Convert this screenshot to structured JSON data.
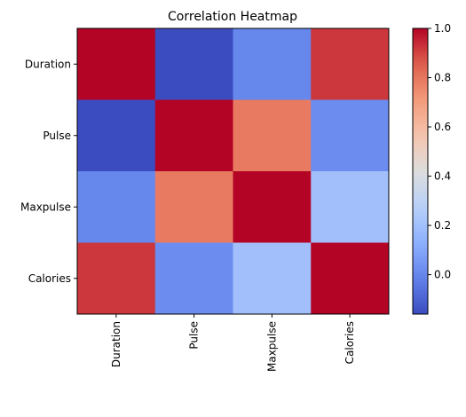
{
  "chart_data": {
    "type": "heatmap",
    "title": "Correlation Heatmap",
    "xlabel": "",
    "ylabel": "",
    "x_categories": [
      "Duration",
      "Pulse",
      "Maxpulse",
      "Calories"
    ],
    "y_categories": [
      "Duration",
      "Pulse",
      "Maxpulse",
      "Calories"
    ],
    "values": [
      [
        1.0,
        -0.16,
        0.0,
        0.92
      ],
      [
        -0.16,
        1.0,
        0.79,
        0.02
      ],
      [
        0.0,
        0.79,
        1.0,
        0.2
      ],
      [
        0.92,
        0.02,
        0.2,
        1.0
      ]
    ],
    "vmin": -0.16,
    "vmax": 1.0,
    "colormap": "coolwarm",
    "colorbar": {
      "ticks": [
        0.0,
        0.2,
        0.4,
        0.6,
        0.8,
        1.0
      ],
      "tick_labels": [
        "0.0",
        "0.2",
        "0.4",
        "0.6",
        "0.8",
        "1.0"
      ]
    },
    "grid": false
  }
}
